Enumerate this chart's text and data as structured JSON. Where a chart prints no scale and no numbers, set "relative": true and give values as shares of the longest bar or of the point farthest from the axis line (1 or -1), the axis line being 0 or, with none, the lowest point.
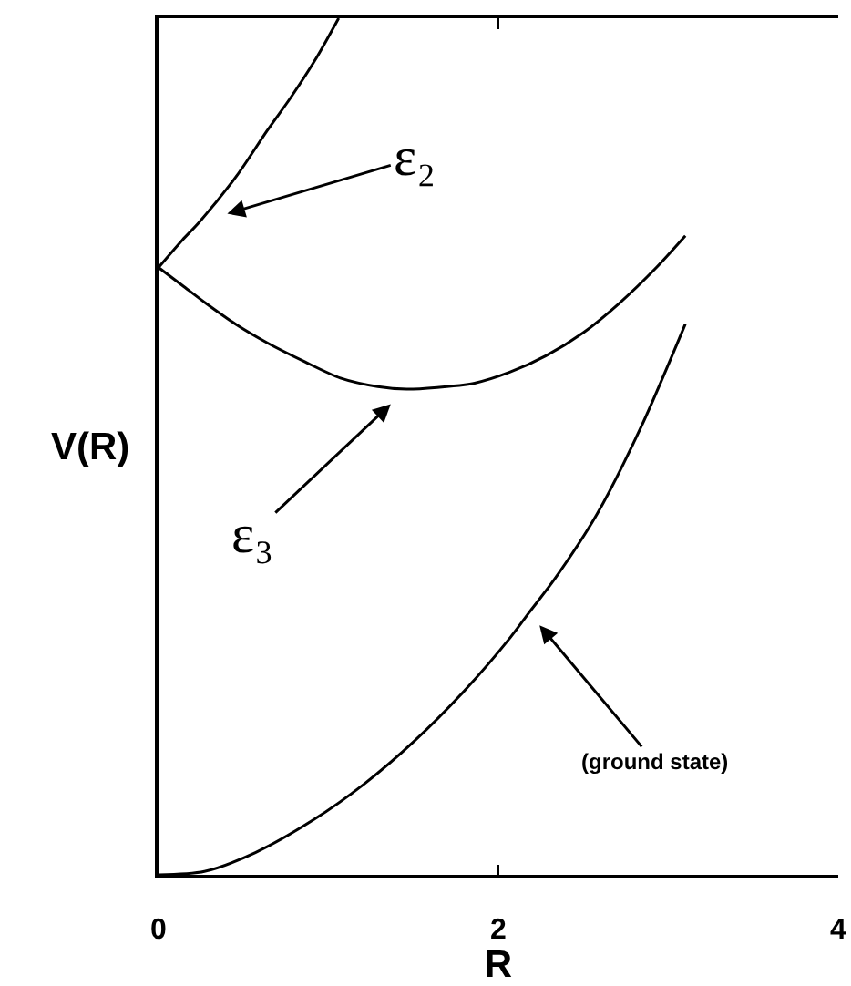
{
  "chart_data": {
    "type": "line",
    "relative": true,
    "xlabel": "R",
    "ylabel": "V(R)",
    "xlim": [
      0,
      4
    ],
    "xticks": [
      0,
      2,
      4
    ],
    "tick_labels": "x",
    "series": [
      {
        "color": "#000000",
        "x": [
          0,
          0.14,
          0.24,
          0.46,
          0.64,
          0.78,
          0.93,
          1.06
        ],
        "values": [
          0.709,
          0.741,
          0.762,
          0.816,
          0.869,
          0.908,
          0.954,
          1.0
        ]
      },
      {
        "color": "#000000",
        "x": [
          0,
          0.14,
          0.28,
          0.46,
          0.64,
          0.86,
          1.07,
          1.29,
          1.46,
          1.64,
          1.86,
          2.07,
          2.28,
          2.5,
          2.71,
          2.93,
          3.1
        ],
        "values": [
          0.709,
          0.688,
          0.667,
          0.642,
          0.621,
          0.599,
          0.58,
          0.57,
          0.567,
          0.569,
          0.574,
          0.587,
          0.606,
          0.633,
          0.667,
          0.709,
          0.746
        ]
      },
      {
        "color": "#000000",
        "x": [
          0,
          0.27,
          0.57,
          0.91,
          1.21,
          1.51,
          1.81,
          2.07,
          2.18,
          2.33,
          2.58,
          2.84,
          3.1
        ],
        "values": [
          0,
          0.004,
          0.026,
          0.064,
          0.106,
          0.157,
          0.217,
          0.277,
          0.306,
          0.345,
          0.421,
          0.523,
          0.643
        ]
      }
    ],
    "annotations": [
      {
        "text": "ε₂",
        "x": 0.24,
        "y": 0.762
      },
      {
        "text": "ε₃",
        "x": 1.46,
        "y": 0.567
      },
      {
        "text": "(ground state)",
        "x": 2.18,
        "y": 0.306
      }
    ]
  }
}
